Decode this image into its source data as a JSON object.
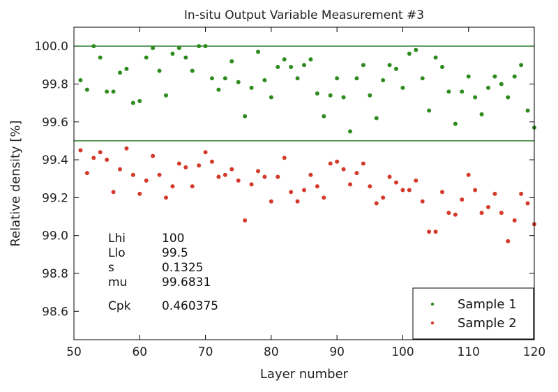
{
  "chart_data": {
    "type": "scatter",
    "title": "In-situ Output Variable Measurement #3",
    "xlabel": "Layer number",
    "ylabel": "Relative density [%]",
    "xlim": [
      50,
      120
    ],
    "ylim": [
      98.45,
      100.1
    ],
    "xticks": [
      50,
      60,
      70,
      80,
      90,
      100,
      110,
      120
    ],
    "yticks": [
      98.6,
      98.8,
      99.0,
      99.2,
      99.4,
      99.6,
      99.8,
      100.0
    ],
    "ytick_labels": [
      "98.6",
      "98.8",
      "99.0",
      "99.2",
      "99.4",
      "99.6",
      "99.8",
      "100.0"
    ],
    "grid": false,
    "legend_position": "bottom-right",
    "reference_lines": [
      {
        "name": "Lhi",
        "y": 100.0,
        "color": "#2e7d32"
      },
      {
        "name": "Llo",
        "y": 99.5,
        "color": "#2e7d32"
      }
    ],
    "series": [
      {
        "name": "Sample 1",
        "color": "#2e8b1e",
        "x": [
          51,
          52,
          53,
          54,
          55,
          56,
          57,
          58,
          59,
          60,
          61,
          62,
          63,
          64,
          65,
          66,
          67,
          68,
          69,
          70,
          71,
          72,
          73,
          74,
          75,
          76,
          77,
          78,
          79,
          80,
          81,
          82,
          83,
          84,
          85,
          86,
          87,
          88,
          89,
          90,
          91,
          92,
          93,
          94,
          95,
          96,
          97,
          98,
          99,
          100,
          101,
          102,
          103,
          104,
          105,
          106,
          107,
          108,
          109,
          110,
          111,
          112,
          113,
          114,
          115,
          116,
          117,
          118,
          119,
          120
        ],
        "values": [
          99.82,
          99.77,
          100.0,
          99.94,
          99.76,
          99.76,
          99.86,
          99.88,
          99.7,
          99.71,
          99.94,
          99.99,
          99.87,
          99.74,
          99.96,
          99.99,
          99.94,
          99.87,
          100.0,
          100.0,
          99.83,
          99.77,
          99.83,
          99.92,
          99.81,
          99.63,
          99.78,
          99.97,
          99.82,
          99.73,
          99.89,
          99.93,
          99.89,
          99.83,
          99.9,
          99.93,
          99.75,
          99.63,
          99.74,
          99.83,
          99.73,
          99.55,
          99.83,
          99.9,
          99.74,
          99.62,
          99.82,
          99.9,
          99.88,
          99.78,
          99.96,
          99.98,
          99.83,
          99.66,
          99.94,
          99.89,
          99.76,
          99.59,
          99.76,
          99.84,
          99.73,
          99.64,
          99.78,
          99.84,
          99.8,
          99.73,
          99.84,
          99.9,
          99.66,
          99.57
        ]
      },
      {
        "name": "Sample 2",
        "color": "#d43a2a",
        "x": [
          51,
          52,
          53,
          54,
          55,
          56,
          57,
          58,
          59,
          60,
          61,
          62,
          63,
          64,
          65,
          66,
          67,
          68,
          69,
          70,
          71,
          72,
          73,
          74,
          75,
          76,
          77,
          78,
          79,
          80,
          81,
          82,
          83,
          84,
          85,
          86,
          87,
          88,
          89,
          90,
          91,
          92,
          93,
          94,
          95,
          96,
          97,
          98,
          99,
          100,
          101,
          102,
          103,
          104,
          105,
          106,
          107,
          108,
          109,
          110,
          111,
          112,
          113,
          114,
          115,
          116,
          117,
          118,
          119,
          120
        ],
        "values": [
          99.45,
          99.33,
          99.41,
          99.44,
          99.4,
          99.23,
          99.35,
          99.46,
          99.32,
          99.22,
          99.29,
          99.42,
          99.32,
          99.2,
          99.26,
          99.38,
          99.36,
          99.26,
          99.37,
          99.44,
          99.39,
          99.31,
          99.32,
          99.35,
          99.29,
          99.08,
          99.27,
          99.34,
          99.31,
          99.18,
          99.31,
          99.41,
          99.23,
          99.18,
          99.24,
          99.32,
          99.26,
          99.2,
          99.38,
          99.39,
          99.35,
          99.27,
          99.33,
          99.38,
          99.26,
          99.17,
          99.2,
          99.31,
          99.28,
          99.24,
          99.24,
          99.29,
          99.18,
          99.02,
          99.02,
          99.23,
          99.12,
          99.11,
          99.19,
          99.32,
          99.24,
          99.12,
          99.15,
          99.22,
          99.12,
          98.97,
          99.08,
          99.22,
          99.17,
          99.06
        ]
      }
    ],
    "stats": [
      {
        "label": "Lhi",
        "value": "100"
      },
      {
        "label": "Llo",
        "value": "99.5"
      },
      {
        "label": "s",
        "value": "0.1325"
      },
      {
        "label": "mu",
        "value": "99.6831"
      },
      {
        "label": "Cpk",
        "value": "0.460375"
      }
    ]
  }
}
